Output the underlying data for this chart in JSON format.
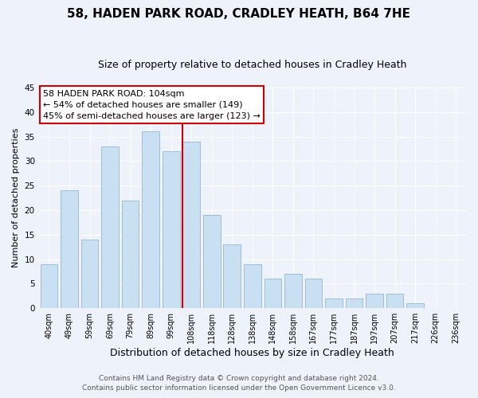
{
  "title": "58, HADEN PARK ROAD, CRADLEY HEATH, B64 7HE",
  "subtitle": "Size of property relative to detached houses in Cradley Heath",
  "xlabel": "Distribution of detached houses by size in Cradley Heath",
  "ylabel": "Number of detached properties",
  "bar_labels": [
    "40sqm",
    "49sqm",
    "59sqm",
    "69sqm",
    "79sqm",
    "89sqm",
    "99sqm",
    "108sqm",
    "118sqm",
    "128sqm",
    "138sqm",
    "148sqm",
    "158sqm",
    "167sqm",
    "177sqm",
    "187sqm",
    "197sqm",
    "207sqm",
    "217sqm",
    "226sqm",
    "236sqm"
  ],
  "bar_values": [
    9,
    24,
    14,
    33,
    22,
    36,
    32,
    34,
    19,
    13,
    9,
    6,
    7,
    6,
    2,
    2,
    3,
    3,
    1,
    0,
    0
  ],
  "bar_color": "#c9dff2",
  "bar_edge_color": "#a0bcd8",
  "highlight_line_color": "#cc0000",
  "highlight_bar_index": 7,
  "annotation_title": "58 HADEN PARK ROAD: 104sqm",
  "annotation_line1": "← 54% of detached houses are smaller (149)",
  "annotation_line2": "45% of semi-detached houses are larger (123) →",
  "annotation_box_color": "#ffffff",
  "annotation_box_edge": "#cc0000",
  "ylim": [
    0,
    45
  ],
  "yticks": [
    0,
    5,
    10,
    15,
    20,
    25,
    30,
    35,
    40,
    45
  ],
  "footer1": "Contains HM Land Registry data © Crown copyright and database right 2024.",
  "footer2": "Contains public sector information licensed under the Open Government Licence v3.0.",
  "background_color": "#eef2fa",
  "grid_color": "#ffffff",
  "title_fontsize": 11,
  "subtitle_fontsize": 9,
  "xlabel_fontsize": 9,
  "ylabel_fontsize": 8,
  "footer_fontsize": 6.5,
  "annotation_fontsize": 8
}
